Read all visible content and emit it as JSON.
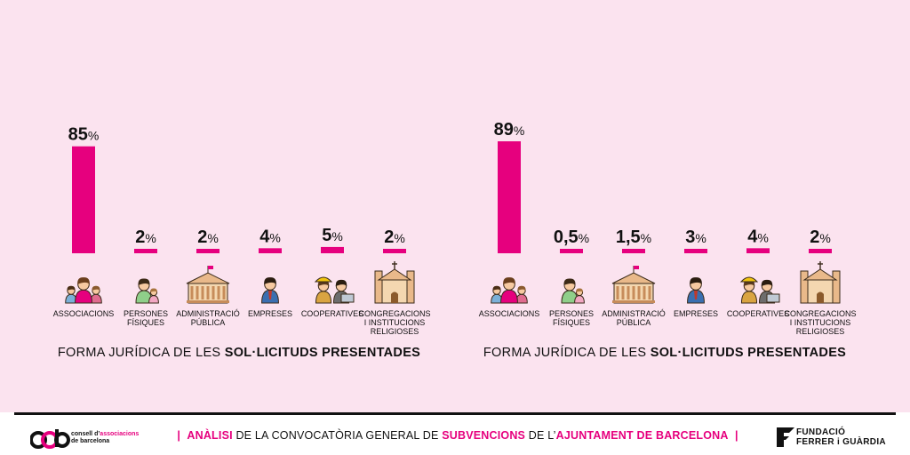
{
  "colors": {
    "bar": "#e6007e",
    "background": "#fbe3ef",
    "text": "#111111"
  },
  "chart_data": [
    {
      "type": "bar",
      "title_normal": "FORMA JURÍDICA DE LES ",
      "title_bold": "SOL·LICITUDS PRESENTADES",
      "categories": [
        [
          "ASSOCIACIONS"
        ],
        [
          "PERSONES",
          "FÍSIQUES"
        ],
        [
          "ADMINISTRACIÓ",
          "PÚBLICA"
        ],
        [
          "EMPRESES"
        ],
        [
          "COOPERATIVES"
        ],
        [
          "CONGREGACIONS",
          "I INSTITUCIONS",
          "RELIGIOSES"
        ]
      ],
      "values": [
        85,
        2,
        2,
        4,
        5,
        2
      ],
      "value_labels": [
        "85",
        "2",
        "2",
        "4",
        "5",
        "2"
      ],
      "unit": "%",
      "icons": [
        "family-icon",
        "parent-child-icon",
        "government-building-icon",
        "businessman-icon",
        "cooperative-workers-icon",
        "church-icon"
      ]
    },
    {
      "type": "bar",
      "title_normal": "FORMA JURÍDICA DE LES ",
      "title_bold": "SOL·LICITUDS PRESENTADES",
      "categories": [
        [
          "ASSOCIACIONS"
        ],
        [
          "PERSONES",
          "FÍSIQUES"
        ],
        [
          "ADMINISTRACIÓ",
          "PÚBLICA"
        ],
        [
          "EMPRESES"
        ],
        [
          "COOPERATIVES"
        ],
        [
          "CONGREGACIONS",
          "I INSTITUCIONS",
          "RELIGIOSES"
        ]
      ],
      "values": [
        89,
        0.5,
        1.5,
        3,
        4,
        2
      ],
      "value_labels": [
        "89",
        "0,5",
        "1,5",
        "3",
        "4",
        "2"
      ],
      "unit": "%",
      "icons": [
        "family-icon",
        "parent-child-icon",
        "government-building-icon",
        "businessman-icon",
        "cooperative-workers-icon",
        "church-icon"
      ]
    }
  ],
  "footer": {
    "separator": "|",
    "part1_bold": "ANÀLISI",
    "part2": " DE LA CONVOCATÒRIA GENERAL DE ",
    "part3_bold": "SUBVENCIONS",
    "part4": " DE L’",
    "part5_bold": "AJUNTAMENT DE BARCELONA",
    "logo_left_line1a": "consell d’",
    "logo_left_line1b": "associacions",
    "logo_left_line2": "de barcelona",
    "logo_right_line1": "FUNDACIÓ",
    "logo_right_line2": "FERRER i GUÀRDIA"
  }
}
